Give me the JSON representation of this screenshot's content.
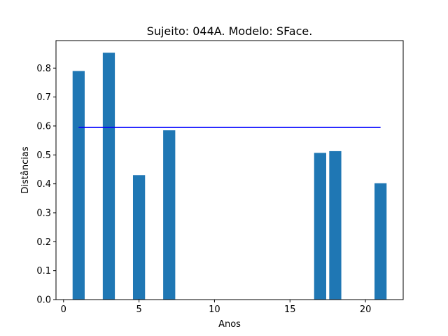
{
  "chart_data": {
    "type": "bar",
    "title": "Sujeito: 044A. Modelo: SFace.",
    "xlabel": "Anos",
    "ylabel": "Distâncias",
    "x": [
      1,
      3,
      5,
      7,
      17,
      18,
      21
    ],
    "values": [
      0.79,
      0.853,
      0.43,
      0.585,
      0.507,
      0.513,
      0.402
    ],
    "bar_width": 0.8,
    "bar_color": "#1f77b4",
    "reference_line": {
      "value": 0.595,
      "x_range": [
        1,
        21
      ],
      "color": "#0000ff"
    },
    "xlim": [
      -0.5,
      22.5
    ],
    "ylim": [
      0,
      0.895
    ],
    "xticks": [
      0,
      5,
      10,
      15,
      20
    ],
    "yticks": [
      0.0,
      0.1,
      0.2,
      0.3,
      0.4,
      0.5,
      0.6,
      0.7,
      0.8
    ],
    "ytick_labels": [
      "0.0",
      "0.1",
      "0.2",
      "0.3",
      "0.4",
      "0.5",
      "0.6",
      "0.7",
      "0.8"
    ],
    "grid": false,
    "legend": "none"
  }
}
